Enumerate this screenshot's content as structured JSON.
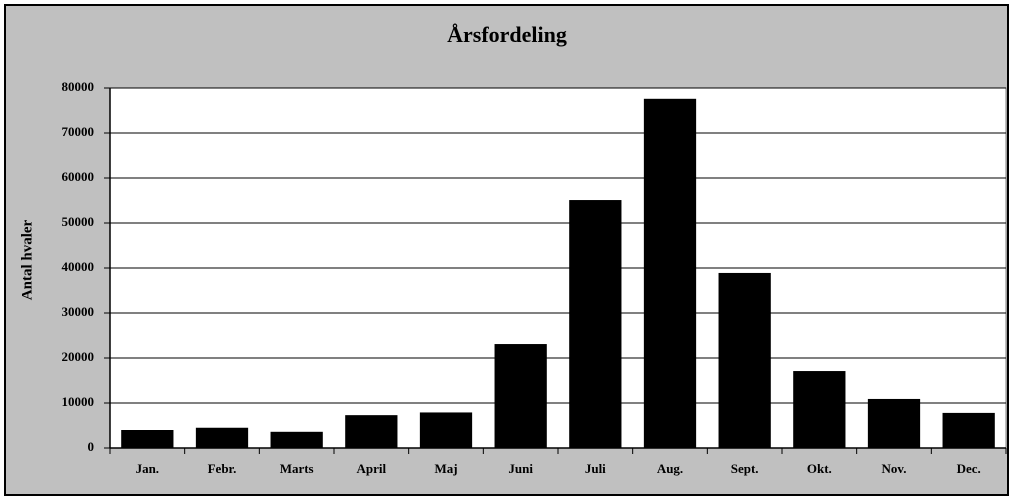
{
  "chart_data": {
    "type": "bar",
    "title": "Årsfordeling",
    "y_label": "Antal hvaler",
    "categories": [
      "Jan.",
      "Febr.",
      "Marts",
      "April",
      "Maj",
      "Juni",
      "Juli",
      "Aug.",
      "Sept.",
      "Okt.",
      "Nov.",
      "Dec."
    ],
    "values": [
      4000,
      4500,
      3600,
      7300,
      7900,
      23100,
      55100,
      77600,
      38900,
      17100,
      10900,
      7800
    ],
    "color": "#000000",
    "ylim": [
      0,
      80000
    ],
    "yticks": [
      0,
      10000,
      20000,
      30000,
      40000,
      50000,
      60000,
      70000,
      80000
    ],
    "grid": true
  }
}
